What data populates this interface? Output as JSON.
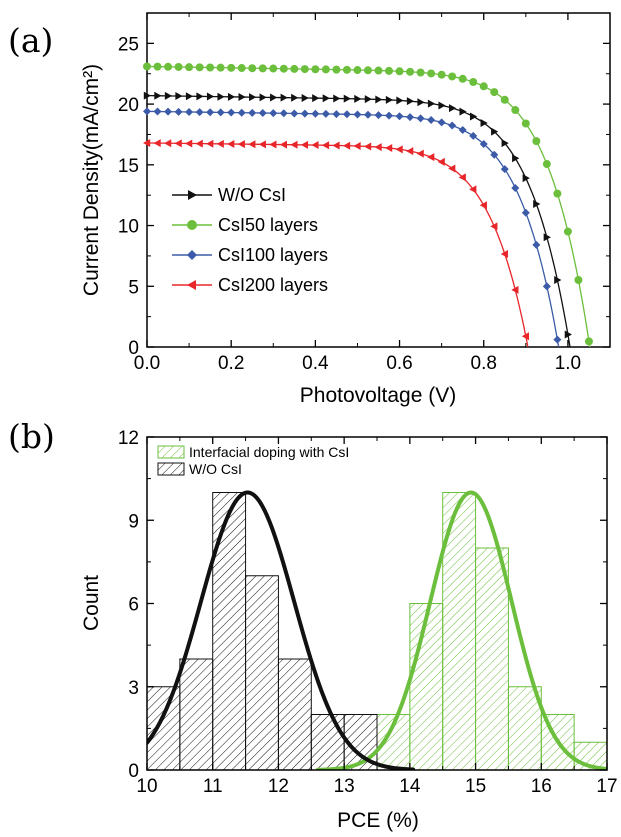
{
  "panels": [
    {
      "label": "(a)"
    },
    {
      "label": "(b)"
    }
  ],
  "chart_data": [
    {
      "type": "line",
      "panel": "(a)",
      "xlabel": "Photovoltage (V)",
      "ylabel": "Current Density(mA/cm²)",
      "xlim": [
        0.0,
        1.1
      ],
      "ylim": [
        0,
        27.5
      ],
      "xticks": [
        0.0,
        0.2,
        0.4,
        0.6,
        0.8,
        1.0
      ],
      "xtick_labels": [
        "0.0",
        "0.2",
        "0.4",
        "0.6",
        "0.8",
        "1.0"
      ],
      "yticks": [
        0,
        5,
        10,
        15,
        20,
        25
      ],
      "ytick_labels": [
        "0",
        "5",
        "10",
        "15",
        "20",
        "25"
      ],
      "legend_position": "center-left",
      "series": [
        {
          "name": "W/O CsI",
          "color": "#111111",
          "marker": "triangle-right",
          "isc": 20.7,
          "voc": 1.005,
          "n": 1.9
        },
        {
          "name": "CsI50 layers",
          "color": "#6cbf3c",
          "marker": "circle",
          "isc": 23.1,
          "voc": 1.052,
          "n": 1.85
        },
        {
          "name": "CsI100 layers",
          "color": "#3b5ba8",
          "marker": "diamond",
          "isc": 19.4,
          "voc": 0.978,
          "n": 1.9
        },
        {
          "name": "CsI200 layers",
          "color": "#e8262a",
          "marker": "triangle-left",
          "isc": 16.8,
          "voc": 0.905,
          "n": 2.0
        }
      ]
    },
    {
      "type": "bar",
      "panel": "(b)",
      "xlabel": "PCE (%)",
      "ylabel": "Count",
      "xlim": [
        10,
        17
      ],
      "ylim": [
        0,
        12
      ],
      "xticks": [
        10,
        11,
        12,
        13,
        14,
        15,
        16,
        17
      ],
      "xtick_labels": [
        "10",
        "11",
        "12",
        "13",
        "14",
        "15",
        "16",
        "17"
      ],
      "yticks": [
        0,
        3,
        6,
        9,
        12
      ],
      "ytick_labels": [
        "0",
        "3",
        "6",
        "9",
        "12"
      ],
      "legend_position": "top-left",
      "series": [
        {
          "name": "Interfacial doping with CsI",
          "color": "#6cbf3c",
          "bin_starts": [
            13.5,
            14.0,
            14.5,
            15.0,
            15.5,
            16.0,
            16.5
          ],
          "counts": [
            2,
            6,
            10,
            8,
            3,
            2,
            1
          ],
          "fit": {
            "mean": 14.93,
            "sd": 0.62,
            "peak": 10,
            "x_start": 12.6,
            "x_end": 17.0
          }
        },
        {
          "name": "W/O CsI",
          "color": "#111111",
          "bin_starts": [
            10.0,
            10.5,
            11.0,
            11.5,
            12.0,
            12.5,
            13.0
          ],
          "counts": [
            3,
            4,
            10,
            7,
            4,
            2,
            2
          ],
          "fit": {
            "mean": 11.53,
            "sd": 0.71,
            "peak": 10,
            "x_start": 10.0,
            "x_end": 14.05
          }
        }
      ]
    }
  ]
}
